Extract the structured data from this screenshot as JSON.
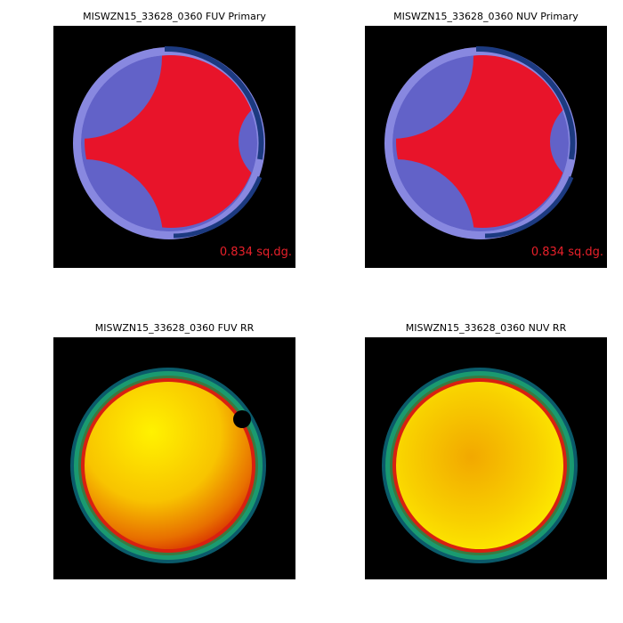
{
  "panels": [
    {
      "title": "MISWZN15_33628_0360 FUV Primary",
      "label": "0.834 sq.dg."
    },
    {
      "title": "MISWZN15_33628_0360 NUV Primary",
      "label": "0.834 sq.dg."
    },
    {
      "title": "MISWZN15_33628_0360 FUV RR"
    },
    {
      "title": "MISWZN15_33628_0360 NUV RR"
    }
  ]
}
